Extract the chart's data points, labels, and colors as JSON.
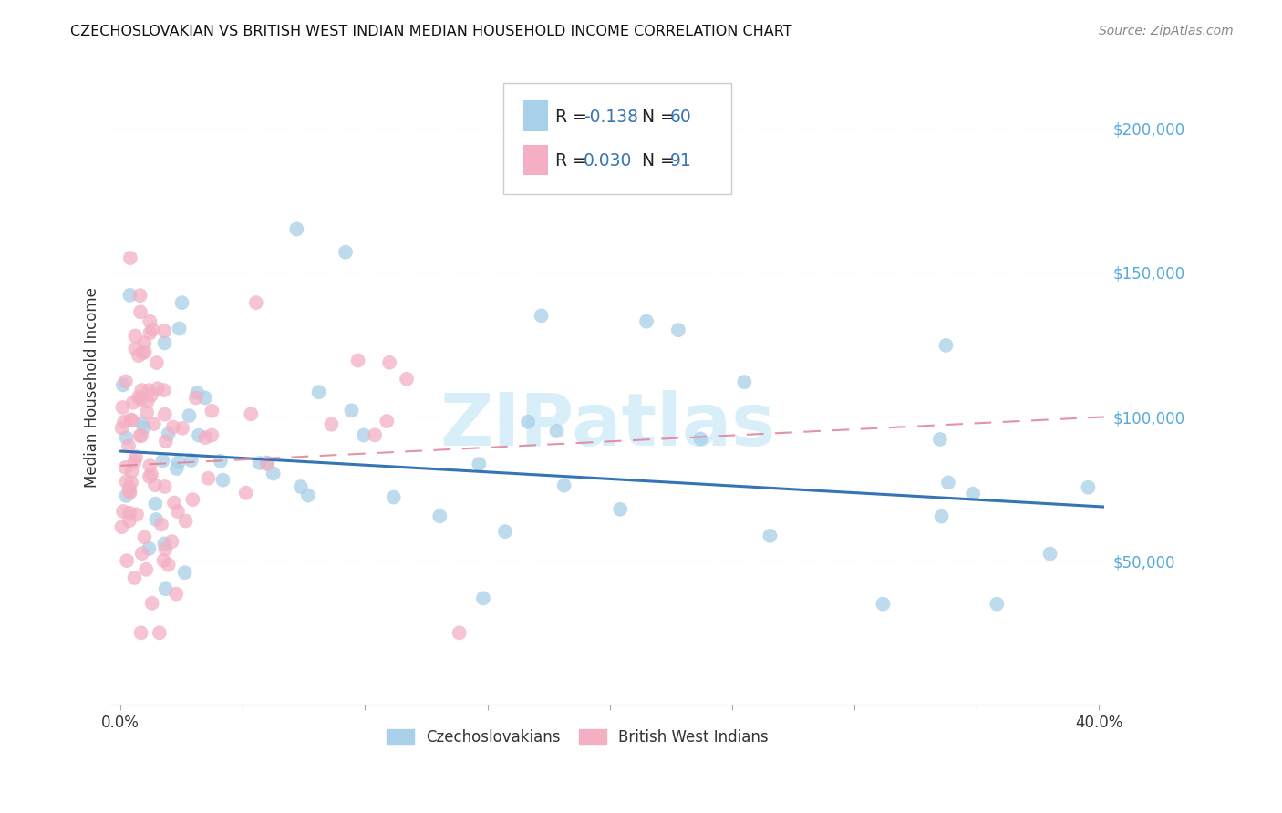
{
  "title": "CZECHOSLOVAKIAN VS BRITISH WEST INDIAN MEDIAN HOUSEHOLD INCOME CORRELATION CHART",
  "source": "Source: ZipAtlas.com",
  "ylabel": "Median Household Income",
  "xlim": [
    -0.004,
    0.402
  ],
  "ylim": [
    0,
    220000
  ],
  "yticks_right": [
    50000,
    100000,
    150000,
    200000
  ],
  "ytick_labels_right": [
    "$50,000",
    "$100,000",
    "$150,000",
    "$200,000"
  ],
  "blue_color": "#a8d0e8",
  "pink_color": "#f4afc3",
  "blue_line_color": "#3575b5",
  "pink_line_color": "#e08098",
  "grid_color": "#cccccc",
  "background_color": "#ffffff",
  "text_color": "#333333",
  "blue_label_color": "#3575b5",
  "right_axis_color": "#55aadd",
  "watermark_color": "#d8eef8",
  "czecho_seed": 10,
  "bwi_seed": 20,
  "blue_trend_b": 88000,
  "blue_trend_m": -48000,
  "pink_trend_b": 83000,
  "pink_trend_m": 42000
}
